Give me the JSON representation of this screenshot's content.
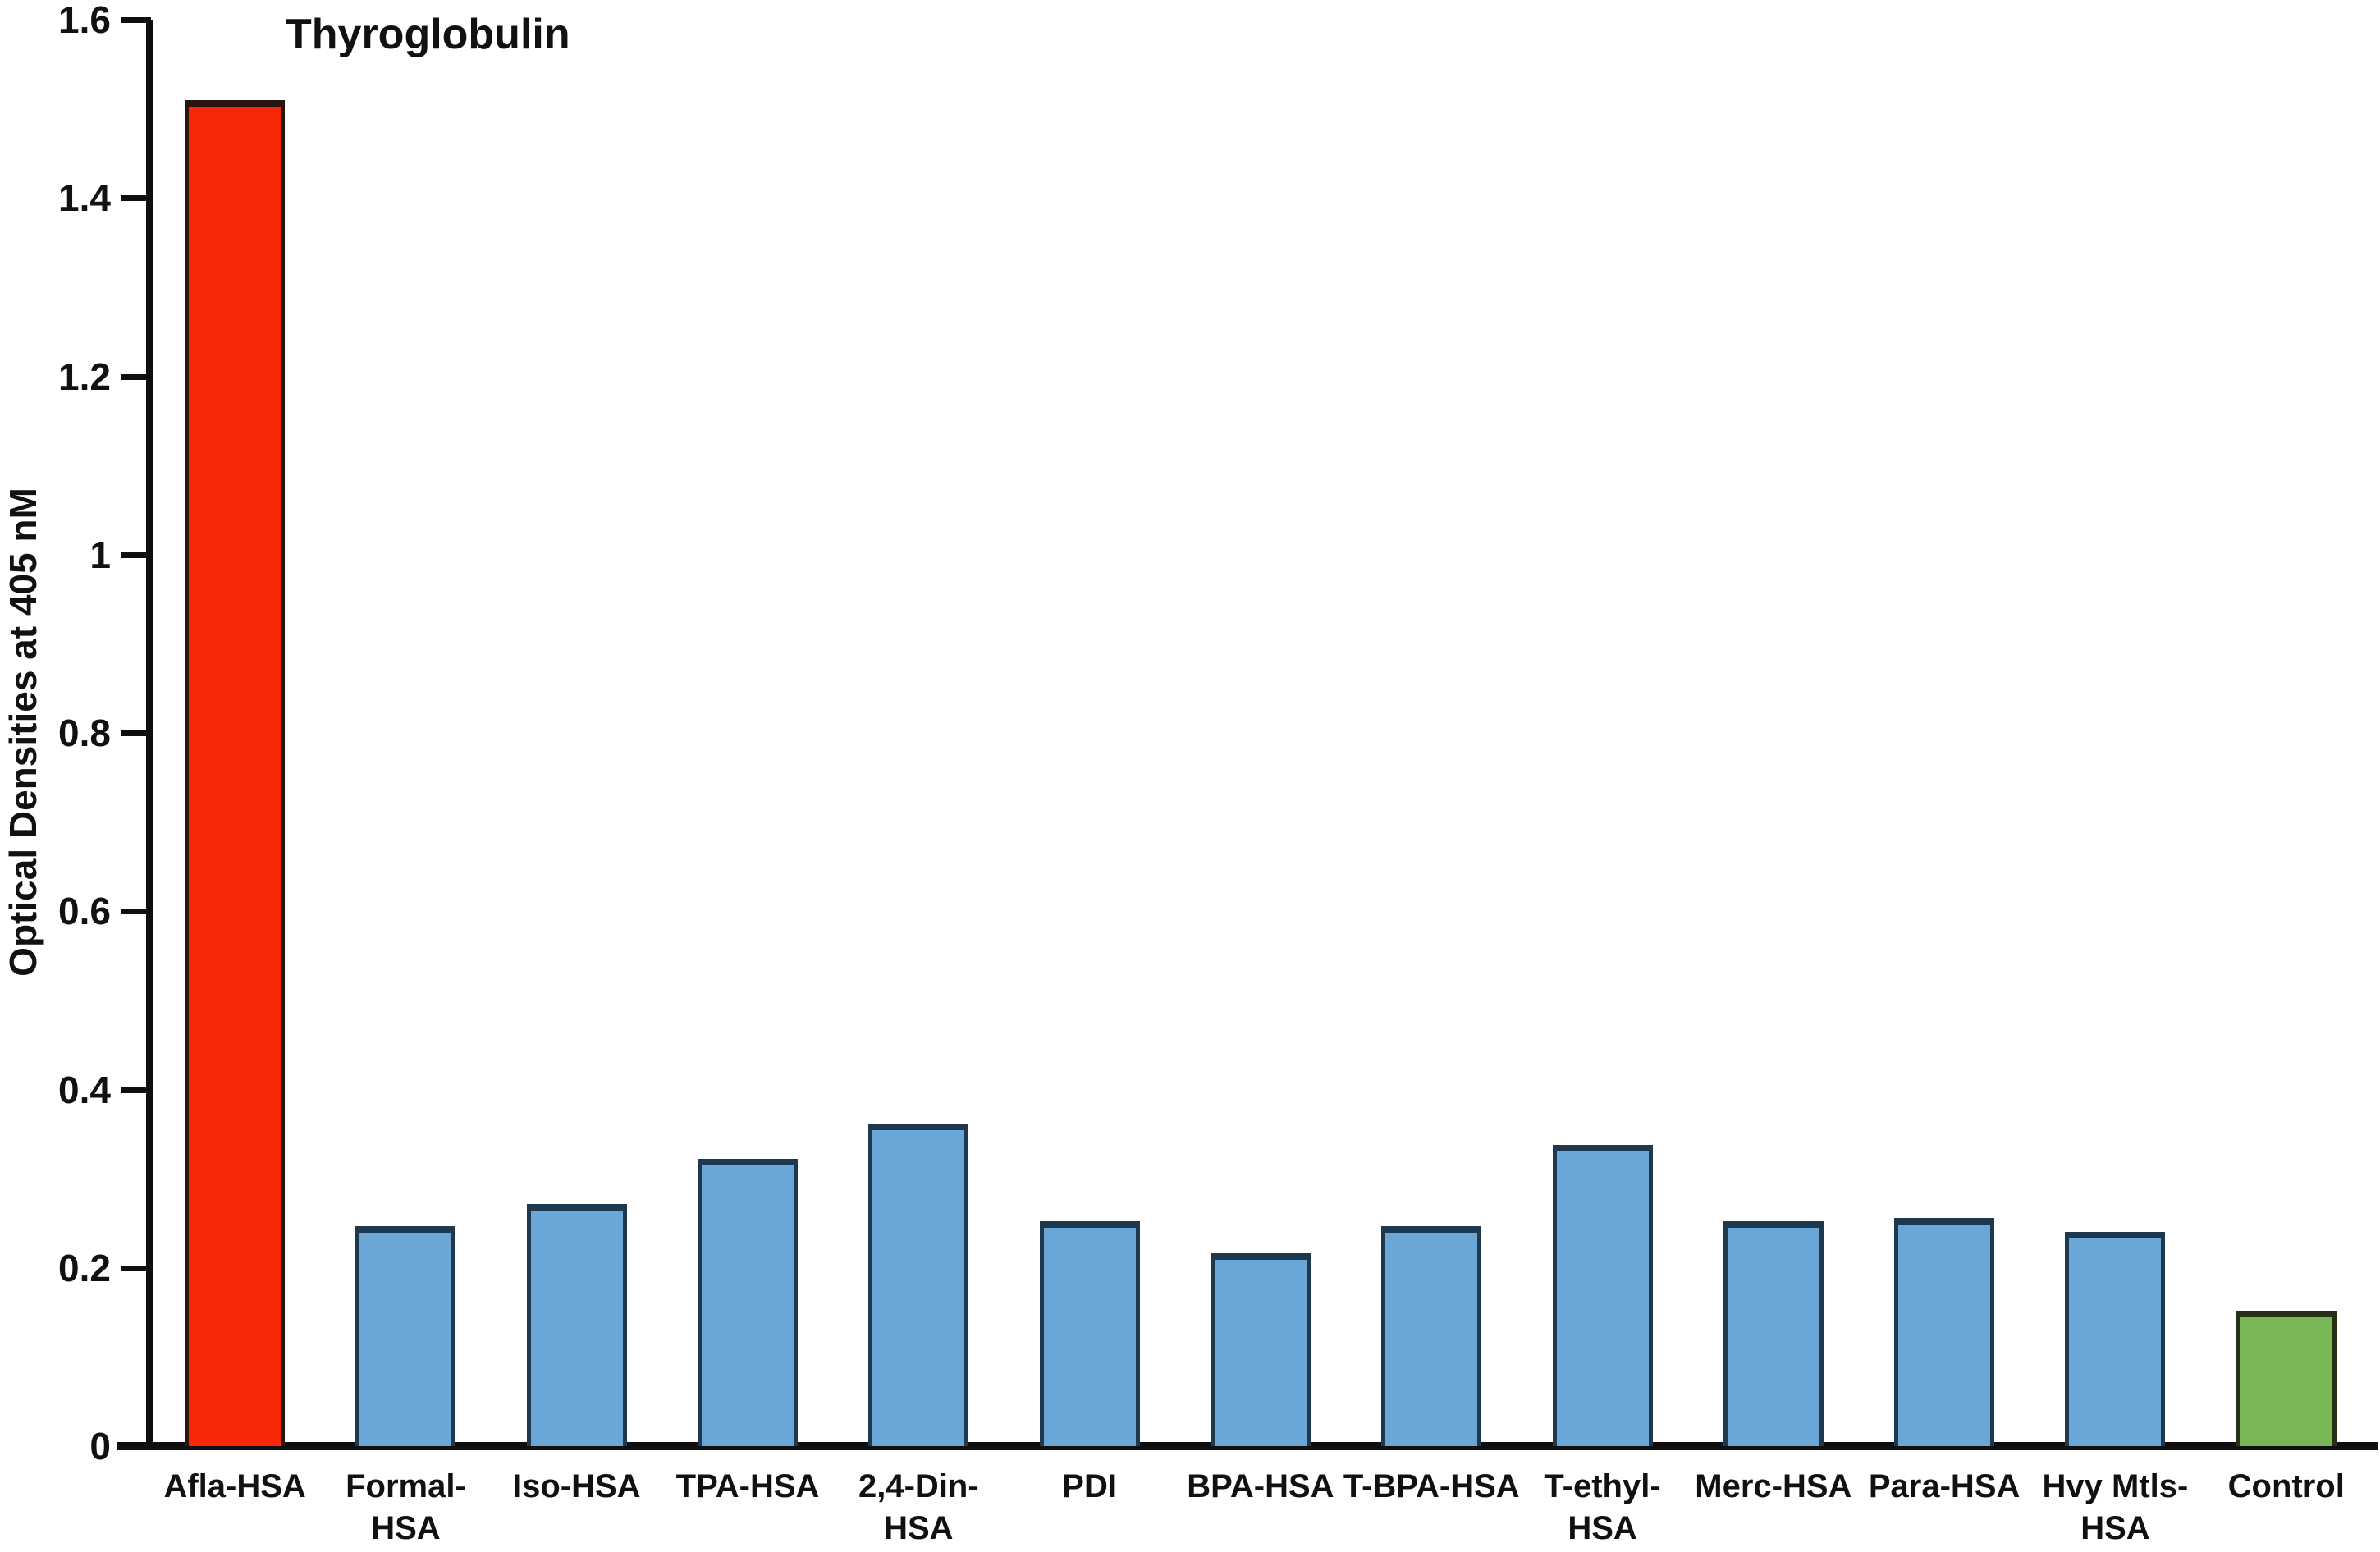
{
  "chart_data": {
    "type": "bar",
    "title": "Thyroglobulin",
    "xlabel": "",
    "ylabel": "Optical Densities at 405 nM",
    "ylim": [
      0,
      1.6
    ],
    "ytick_labels": [
      "0",
      "0.2",
      "0.4",
      "0.6",
      "0.8",
      "1",
      "1.2",
      "1.4",
      "1.6"
    ],
    "yticks": [
      0,
      0.2,
      0.4,
      0.6,
      0.8,
      1.0,
      1.2,
      1.4,
      1.6
    ],
    "grid": false,
    "legend": false,
    "categories": [
      "Afla-HSA",
      "Formal-HSA",
      "Iso-HSA",
      "TPA-HSA",
      "2,4-Din-\nHSA",
      "PDI",
      "BPA-HSA",
      "T-BPA-HSA",
      "T-ethyl-\nHSA",
      "Merc-HSA",
      "Para-HSA",
      "Hvy Mtls-\nHSA",
      "Control"
    ],
    "values": [
      1.51,
      0.247,
      0.272,
      0.322,
      0.362,
      0.252,
      0.216,
      0.247,
      0.338,
      0.252,
      0.256,
      0.24,
      0.152
    ],
    "bar_color_keys": [
      "highlight",
      "default",
      "default",
      "default",
      "default",
      "default",
      "default",
      "default",
      "default",
      "default",
      "default",
      "default",
      "control"
    ],
    "colors": {
      "highlight_fill": "#f72808",
      "highlight_border": "#2a1410",
      "default_fill": "#6ba7d6",
      "default_border": "#1e3850",
      "control_fill": "#79b656",
      "control_border": "#253019",
      "axis": "#0f0f0f",
      "text": "#111111",
      "background": "#ffffff"
    }
  }
}
